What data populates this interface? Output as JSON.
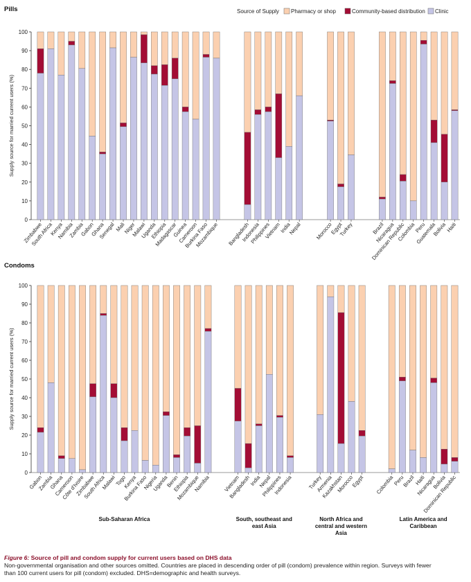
{
  "colors": {
    "pharmacy": "#fbd0b0",
    "community": "#a30d35",
    "clinic": "#c5c5e6",
    "caption_accent": "#8b0f2a"
  },
  "legend": {
    "title": "Source of Supply",
    "items": [
      "Pharmacy or shop",
      "Community-based distribution",
      "Clinic"
    ]
  },
  "caption": {
    "label": "Figure 6:",
    "title": " Source of pill and condom supply for current users based on DHS data",
    "line1": "Non-governmental organisation and other sources omitted. Countries are placed in descending order of pill (condom) prevalence within region. Surveys with fewer",
    "line2": "than 100 current users for pill (condom) excluded. DHS=demographic and health surveys."
  },
  "chart_data": [
    {
      "type": "bar",
      "stacked": true,
      "title": "Pills",
      "ylabel": "Supply source for married current users (%)",
      "ylim": [
        0,
        100
      ],
      "yticks": [
        0,
        10,
        20,
        30,
        40,
        50,
        60,
        70,
        80,
        90,
        100
      ],
      "legend_position": "top-right",
      "series_order": [
        "Clinic",
        "Community-based distribution",
        "Pharmacy or shop"
      ],
      "groups": [
        {
          "region": "",
          "bars": [
            {
              "country": "Zimbabwe",
              "clinic": 78,
              "community": 13
            },
            {
              "country": "South Africa",
              "clinic": 91,
              "community": 0
            },
            {
              "country": "Kenya",
              "clinic": 77,
              "community": 0
            },
            {
              "country": "Namibia",
              "clinic": 93,
              "community": 2
            },
            {
              "country": "Zambia",
              "clinic": 80.5,
              "community": 0
            },
            {
              "country": "Gabon",
              "clinic": 44.5,
              "community": 0
            },
            {
              "country": "Ghana",
              "clinic": 35,
              "community": 1
            },
            {
              "country": "Senegal",
              "clinic": 91.5,
              "community": 0
            },
            {
              "country": "Mali",
              "clinic": 49.5,
              "community": 2
            },
            {
              "country": "Niger",
              "clinic": 86.5,
              "community": 0
            },
            {
              "country": "Malawi",
              "clinic": 83.5,
              "community": 15
            },
            {
              "country": "Uganda",
              "clinic": 77.5,
              "community": 4.5
            },
            {
              "country": "Ethiopia",
              "clinic": 71.5,
              "community": 11
            },
            {
              "country": "Madagascar",
              "clinic": 75,
              "community": 11
            },
            {
              "country": "Guinea",
              "clinic": 57.5,
              "community": 2.5
            },
            {
              "country": "Cameroon",
              "clinic": 53.5,
              "community": 0
            },
            {
              "country": "Burkina Faso",
              "clinic": 86.5,
              "community": 1.5
            },
            {
              "country": "Mozambique",
              "clinic": 86,
              "community": 0
            }
          ]
        },
        {
          "region": "",
          "bars": [
            {
              "country": "Bangladesh",
              "clinic": 8,
              "community": 38.5
            },
            {
              "country": "Indonesia",
              "clinic": 56,
              "community": 2.5
            },
            {
              "country": "Philippines",
              "clinic": 57.5,
              "community": 2.5
            },
            {
              "country": "Vietnam",
              "clinic": 33,
              "community": 34
            },
            {
              "country": "India",
              "clinic": 39,
              "community": 0
            },
            {
              "country": "Nepal",
              "clinic": 66,
              "community": 0
            }
          ]
        },
        {
          "region": "",
          "bars": [
            {
              "country": "Morocco",
              "clinic": 52.5,
              "community": 0.5
            },
            {
              "country": "Egypt",
              "clinic": 17.5,
              "community": 1.5
            },
            {
              "country": "Turkey",
              "clinic": 34.5,
              "community": 0
            }
          ]
        },
        {
          "region": "",
          "bars": [
            {
              "country": "Brazil",
              "clinic": 11,
              "community": 1
            },
            {
              "country": "Nicaragua",
              "clinic": 72.5,
              "community": 1.5
            },
            {
              "country": "Dominican Republic",
              "clinic": 20.5,
              "community": 3.5
            },
            {
              "country": "Colombia",
              "clinic": 10,
              "community": 0
            },
            {
              "country": "Peru",
              "clinic": 93.5,
              "community": 2
            },
            {
              "country": "Guatemala",
              "clinic": 41,
              "community": 12
            },
            {
              "country": "Bolivia",
              "clinic": 20,
              "community": 25.5
            },
            {
              "country": "Haiti",
              "clinic": 58,
              "community": 0.5
            }
          ]
        }
      ]
    },
    {
      "type": "bar",
      "stacked": true,
      "title": "Condoms",
      "ylabel": "Supply source for married current users (%)",
      "ylim": [
        0,
        100
      ],
      "yticks": [
        0,
        10,
        20,
        30,
        40,
        50,
        60,
        70,
        80,
        90,
        100
      ],
      "series_order": [
        "Clinic",
        "Community-based distribution",
        "Pharmacy or shop"
      ],
      "groups": [
        {
          "region": "Sub-Saharan Africa",
          "bars": [
            {
              "country": "Gabon",
              "clinic": 21.5,
              "community": 2.5
            },
            {
              "country": "Zambia",
              "clinic": 48,
              "community": 0
            },
            {
              "country": "Ghana",
              "clinic": 7.5,
              "community": 1.5
            },
            {
              "country": "Cameroon",
              "clinic": 7.5,
              "community": 0
            },
            {
              "country": "Côte d'Ivoire",
              "clinic": 1.5,
              "community": 0
            },
            {
              "country": "Zimbabwe",
              "clinic": 40.5,
              "community": 7
            },
            {
              "country": "South Africa",
              "clinic": 84,
              "community": 1
            },
            {
              "country": "Malawi",
              "clinic": 40,
              "community": 7.5
            },
            {
              "country": "Togo",
              "clinic": 17,
              "community": 7
            },
            {
              "country": "Kenya",
              "clinic": 22.5,
              "community": 0
            },
            {
              "country": "Burkina Faso",
              "clinic": 6.5,
              "community": 0
            },
            {
              "country": "Nigeria",
              "clinic": 4,
              "community": 0
            },
            {
              "country": "Uganda",
              "clinic": 30.5,
              "community": 2
            },
            {
              "country": "Benin",
              "clinic": 8,
              "community": 1.5
            },
            {
              "country": "Ethiopia",
              "clinic": 19.5,
              "community": 4.5
            },
            {
              "country": "Mozambique",
              "clinic": 5,
              "community": 20
            },
            {
              "country": "Namibia",
              "clinic": 75.5,
              "community": 1.5
            }
          ]
        },
        {
          "region": "South, southeast and east Asia",
          "bars": [
            {
              "country": "Vietnam",
              "clinic": 27.5,
              "community": 17.5
            },
            {
              "country": "Bangladesh",
              "clinic": 2.5,
              "community": 13
            },
            {
              "country": "India",
              "clinic": 25,
              "community": 1
            },
            {
              "country": "Nepal",
              "clinic": 52.5,
              "community": 0
            },
            {
              "country": "Philippines",
              "clinic": 29.5,
              "community": 1
            },
            {
              "country": "Indonesia",
              "clinic": 8,
              "community": 1
            }
          ]
        },
        {
          "region": "North Africa and central and western Asia",
          "bars": [
            {
              "country": "Turkey",
              "clinic": 31,
              "community": 0
            },
            {
              "country": "Armenia",
              "clinic": 94,
              "community": 0
            },
            {
              "country": "Kazakhstan",
              "clinic": 15.5,
              "community": 70
            },
            {
              "country": "Morocco",
              "clinic": 38,
              "community": 0
            },
            {
              "country": "Egypt",
              "clinic": 19.5,
              "community": 3
            }
          ]
        },
        {
          "region": "Latin America and Caribbean",
          "bars": [
            {
              "country": "Colombia",
              "clinic": 2,
              "community": 0
            },
            {
              "country": "Peru",
              "clinic": 49,
              "community": 2
            },
            {
              "country": "Brazil",
              "clinic": 12,
              "community": 0
            },
            {
              "country": "Haiti",
              "clinic": 8,
              "community": 0
            },
            {
              "country": "Nicaragua",
              "clinic": 48,
              "community": 2.5
            },
            {
              "country": "Bolivia",
              "clinic": 4.5,
              "community": 8
            },
            {
              "country": "Dominican Republic",
              "clinic": 6,
              "community": 2
            }
          ]
        }
      ]
    }
  ]
}
